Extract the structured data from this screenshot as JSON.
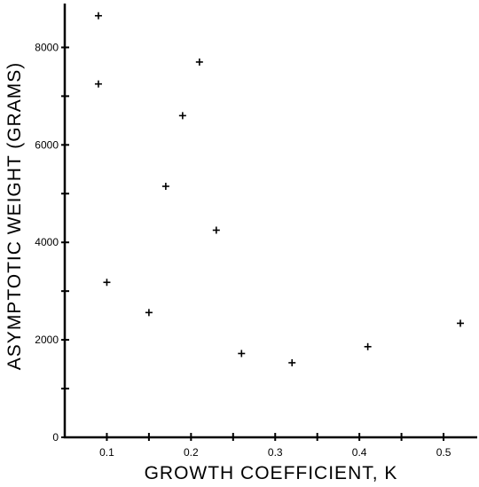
{
  "chart_data": {
    "type": "scatter",
    "title": "",
    "xlabel": "GROWTH COEFFICIENT, K",
    "ylabel": "ASYMPTOTIC WEIGHT (GRAMS)",
    "xlim": [
      0.05,
      0.54
    ],
    "ylim": [
      0,
      8900
    ],
    "xticks": [
      0.1,
      0.2,
      0.3,
      0.4,
      0.5
    ],
    "xtick_labels": [
      "0.1",
      "0.2",
      "0.3",
      "0.4",
      "0.5"
    ],
    "yticks": [
      0,
      2000,
      4000,
      6000,
      8000
    ],
    "ytick_labels": [
      "0",
      "2000",
      "4000",
      "6000",
      "8000"
    ],
    "marker": "+",
    "grid": false,
    "points": [
      {
        "x": 0.09,
        "y": 8650
      },
      {
        "x": 0.09,
        "y": 7250
      },
      {
        "x": 0.21,
        "y": 7700
      },
      {
        "x": 0.19,
        "y": 6600
      },
      {
        "x": 0.17,
        "y": 5150
      },
      {
        "x": 0.23,
        "y": 4250
      },
      {
        "x": 0.1,
        "y": 3180
      },
      {
        "x": 0.15,
        "y": 2560
      },
      {
        "x": 0.26,
        "y": 1720
      },
      {
        "x": 0.32,
        "y": 1530
      },
      {
        "x": 0.41,
        "y": 1860
      },
      {
        "x": 0.52,
        "y": 2340
      }
    ]
  }
}
